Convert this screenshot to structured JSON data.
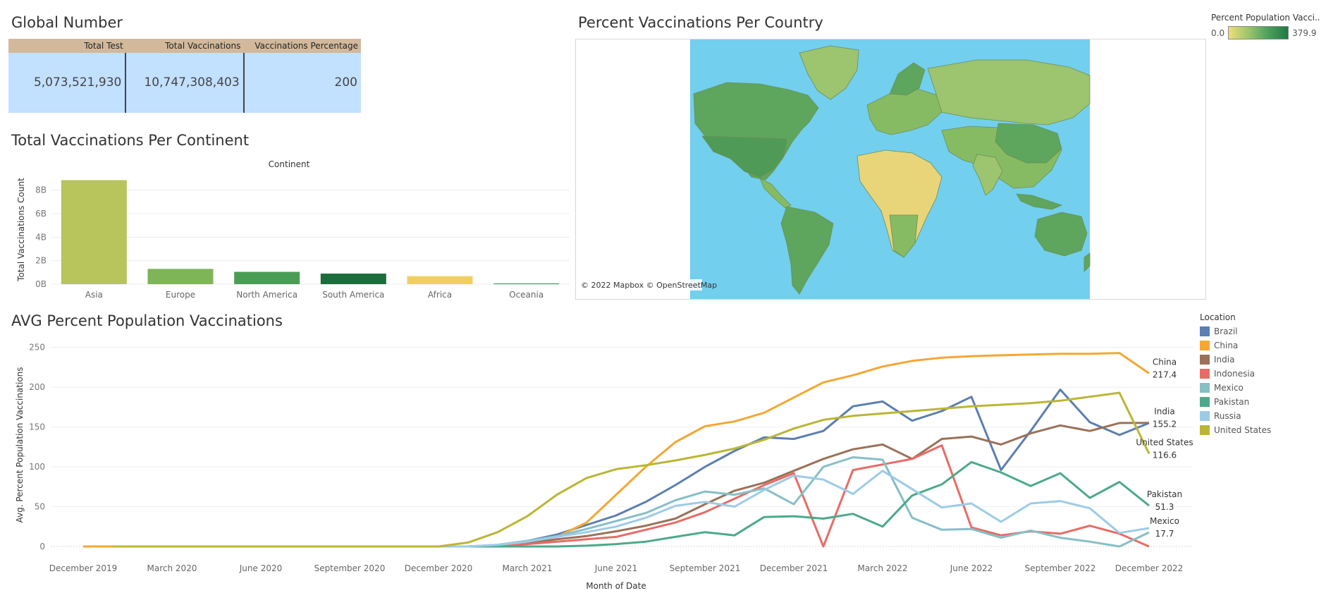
{
  "dashboard": {
    "global_title": "Global Number",
    "continent_title": "Total Vaccinations Per Continent",
    "map_title": "Percent Vaccinations Per Country",
    "line_title": "AVG Percent Population Vaccinations"
  },
  "table": {
    "headers": [
      "Total Test",
      "Total Vaccinations",
      "Vaccinations Percentage"
    ],
    "values": [
      "5,073,521,930",
      "10,747,308,403",
      "200"
    ]
  },
  "map": {
    "legend_title": "Percent Population Vacci..",
    "legend_min": "0.0",
    "legend_max": "379.9",
    "attribution": "© 2022 Mapbox © OpenStreetMap",
    "ocean_color": "#72cfee",
    "land_colors": [
      "#9dc46e",
      "#5ea55e",
      "#e8d57a",
      "#87bb63"
    ]
  },
  "legend": {
    "title": "Location",
    "items": [
      {
        "label": "Brazil",
        "color": "#5b7fb0"
      },
      {
        "label": "China",
        "color": "#f4a732"
      },
      {
        "label": "India",
        "color": "#9b7158"
      },
      {
        "label": "Indonesia",
        "color": "#e86b66"
      },
      {
        "label": "Mexico",
        "color": "#86bfc6"
      },
      {
        "label": "Pakistan",
        "color": "#4ca98a"
      },
      {
        "label": "Russia",
        "color": "#9dcbe6"
      },
      {
        "label": "United States",
        "color": "#bab634"
      }
    ]
  },
  "chart_data": [
    {
      "type": "bar",
      "title": "Total Vaccinations Per Continent",
      "header": "Continent",
      "xlabel": "",
      "ylabel": "Total Vaccinations Count",
      "categories": [
        "Asia",
        "Europe",
        "North America",
        "South America",
        "Africa",
        "Oceania"
      ],
      "values": [
        8.85,
        1.3,
        1.05,
        0.9,
        0.68,
        0.06
      ],
      "colors": [
        "#b8c45c",
        "#7db557",
        "#4a9d55",
        "#1b6e3b",
        "#f1cf63",
        "#2f8f4e"
      ],
      "yticks": [
        "0B",
        "2B",
        "4B",
        "6B",
        "8B"
      ],
      "ytick_values": [
        0,
        2,
        4,
        6,
        8
      ],
      "ylim": [
        0,
        9.3
      ],
      "grid": true
    },
    {
      "type": "line",
      "title": "AVG Percent Population Vaccinations",
      "xlabel": "Month of Date",
      "ylabel": "Avg. Percent Population Vaccinations",
      "x_range": [
        "2019-12",
        "2022-12"
      ],
      "ylim": [
        0,
        255
      ],
      "yticks": [
        0,
        50,
        100,
        150,
        200,
        250
      ],
      "xticks": [
        "December 2019",
        "March 2020",
        "June 2020",
        "September 2020",
        "December 2020",
        "March 2021",
        "June 2021",
        "September 2021",
        "December 2021",
        "March 2022",
        "June 2022",
        "September 2022",
        "December 2022"
      ],
      "grid": true,
      "series": [
        {
          "name": "Brazil",
          "points": [
            [
              "2020-01",
              0
            ],
            [
              "2021-01",
              0
            ],
            [
              "2021-02",
              2
            ],
            [
              "2021-03",
              7
            ],
            [
              "2021-04",
              15
            ],
            [
              "2021-05",
              27
            ],
            [
              "2021-06",
              39
            ],
            [
              "2021-07",
              56
            ],
            [
              "2021-08",
              77
            ],
            [
              "2021-09",
              100
            ],
            [
              "2021-10",
              120
            ],
            [
              "2021-11",
              137
            ],
            [
              "2021-12",
              135
            ],
            [
              "2022-01",
              145
            ],
            [
              "2022-02",
              176
            ],
            [
              "2022-03",
              182
            ],
            [
              "2022-04",
              158
            ],
            [
              "2022-05",
              170
            ],
            [
              "2022-06",
              188
            ],
            [
              "2022-07",
              96
            ],
            [
              "2022-08",
              145
            ],
            [
              "2022-09",
              197
            ],
            [
              "2022-10",
              156
            ],
            [
              "2022-11",
              140
            ],
            [
              "2022-12",
              155
            ]
          ]
        },
        {
          "name": "China",
          "points": [
            [
              "2019-12",
              0
            ],
            [
              "2020-01",
              0
            ],
            [
              "2021-01",
              0
            ],
            [
              "2021-02",
              0
            ],
            [
              "2021-03",
              4
            ],
            [
              "2021-04",
              12
            ],
            [
              "2021-05",
              30
            ],
            [
              "2021-06",
              65
            ],
            [
              "2021-07",
              100
            ],
            [
              "2021-08",
              131
            ],
            [
              "2021-09",
              151
            ],
            [
              "2021-10",
              157
            ],
            [
              "2021-11",
              168
            ],
            [
              "2021-12",
              187
            ],
            [
              "2022-01",
              206
            ],
            [
              "2022-02",
              215
            ],
            [
              "2022-03",
              226
            ],
            [
              "2022-04",
              233
            ],
            [
              "2022-05",
              237
            ],
            [
              "2022-06",
              239
            ],
            [
              "2022-07",
              240
            ],
            [
              "2022-08",
              241
            ],
            [
              "2022-09",
              242
            ],
            [
              "2022-10",
              242
            ],
            [
              "2022-11",
              243
            ],
            [
              "2022-12",
              217.4
            ]
          ]
        },
        {
          "name": "India",
          "points": [
            [
              "2020-01",
              0
            ],
            [
              "2021-01",
              0
            ],
            [
              "2021-02",
              1
            ],
            [
              "2021-03",
              4
            ],
            [
              "2021-04",
              9
            ],
            [
              "2021-05",
              13
            ],
            [
              "2021-06",
              19
            ],
            [
              "2021-07",
              26
            ],
            [
              "2021-08",
              35
            ],
            [
              "2021-09",
              53
            ],
            [
              "2021-10",
              70
            ],
            [
              "2021-11",
              80
            ],
            [
              "2021-12",
              95
            ],
            [
              "2022-01",
              110
            ],
            [
              "2022-02",
              122
            ],
            [
              "2022-03",
              128
            ],
            [
              "2022-04",
              110
            ],
            [
              "2022-05",
              135
            ],
            [
              "2022-06",
              138
            ],
            [
              "2022-07",
              128
            ],
            [
              "2022-08",
              142
            ],
            [
              "2022-09",
              152
            ],
            [
              "2022-10",
              145
            ],
            [
              "2022-11",
              155
            ],
            [
              "2022-12",
              155.2
            ]
          ]
        },
        {
          "name": "Indonesia",
          "points": [
            [
              "2020-01",
              0
            ],
            [
              "2021-01",
              0
            ],
            [
              "2021-02",
              1
            ],
            [
              "2021-03",
              3
            ],
            [
              "2021-04",
              6
            ],
            [
              "2021-05",
              9
            ],
            [
              "2021-06",
              12
            ],
            [
              "2021-07",
              21
            ],
            [
              "2021-08",
              30
            ],
            [
              "2021-09",
              43
            ],
            [
              "2021-10",
              60
            ],
            [
              "2021-11",
              77
            ],
            [
              "2021-12",
              92
            ],
            [
              "2022-01",
              0
            ],
            [
              "2022-02",
              96
            ],
            [
              "2022-03",
              103
            ],
            [
              "2022-04",
              110
            ],
            [
              "2022-05",
              127
            ],
            [
              "2022-06",
              24
            ],
            [
              "2022-07",
              14
            ],
            [
              "2022-08",
              19
            ],
            [
              "2022-09",
              16
            ],
            [
              "2022-10",
              26
            ],
            [
              "2022-11",
              16
            ],
            [
              "2022-12",
              0
            ]
          ]
        },
        {
          "name": "Mexico",
          "points": [
            [
              "2020-01",
              0
            ],
            [
              "2021-01",
              0
            ],
            [
              "2021-02",
              2
            ],
            [
              "2021-03",
              7
            ],
            [
              "2021-04",
              13
            ],
            [
              "2021-05",
              22
            ],
            [
              "2021-06",
              32
            ],
            [
              "2021-07",
              42
            ],
            [
              "2021-08",
              58
            ],
            [
              "2021-09",
              69
            ],
            [
              "2021-10",
              65
            ],
            [
              "2021-11",
              73
            ],
            [
              "2021-12",
              53
            ],
            [
              "2022-01",
              100
            ],
            [
              "2022-02",
              112
            ],
            [
              "2022-03",
              109
            ],
            [
              "2022-04",
              36
            ],
            [
              "2022-05",
              21
            ],
            [
              "2022-06",
              22
            ],
            [
              "2022-07",
              11
            ],
            [
              "2022-08",
              20
            ],
            [
              "2022-09",
              11
            ],
            [
              "2022-10",
              6
            ],
            [
              "2022-11",
              0
            ],
            [
              "2022-12",
              17.7
            ]
          ]
        },
        {
          "name": "Pakistan",
          "points": [
            [
              "2020-01",
              0
            ],
            [
              "2021-01",
              0
            ],
            [
              "2021-02",
              0
            ],
            [
              "2021-03",
              0
            ],
            [
              "2021-04",
              0
            ],
            [
              "2021-05",
              1
            ],
            [
              "2021-06",
              3
            ],
            [
              "2021-07",
              6
            ],
            [
              "2021-08",
              12
            ],
            [
              "2021-09",
              18
            ],
            [
              "2021-10",
              14
            ],
            [
              "2021-11",
              37
            ],
            [
              "2021-12",
              38
            ],
            [
              "2022-01",
              35
            ],
            [
              "2022-02",
              41
            ],
            [
              "2022-03",
              25
            ],
            [
              "2022-04",
              64
            ],
            [
              "2022-05",
              78
            ],
            [
              "2022-06",
              106
            ],
            [
              "2022-07",
              93
            ],
            [
              "2022-08",
              76
            ],
            [
              "2022-09",
              92
            ],
            [
              "2022-10",
              61
            ],
            [
              "2022-11",
              81
            ],
            [
              "2022-12",
              51.3
            ]
          ]
        },
        {
          "name": "Russia",
          "points": [
            [
              "2020-01",
              0
            ],
            [
              "2021-01",
              0
            ],
            [
              "2021-02",
              2
            ],
            [
              "2021-03",
              6
            ],
            [
              "2021-04",
              12
            ],
            [
              "2021-05",
              18
            ],
            [
              "2021-06",
              25
            ],
            [
              "2021-07",
              36
            ],
            [
              "2021-08",
              51
            ],
            [
              "2021-09",
              56
            ],
            [
              "2021-10",
              50
            ],
            [
              "2021-11",
              71
            ],
            [
              "2021-12",
              89
            ],
            [
              "2022-01",
              84
            ],
            [
              "2022-02",
              66
            ],
            [
              "2022-03",
              95
            ],
            [
              "2022-04",
              72
            ],
            [
              "2022-05",
              49
            ],
            [
              "2022-06",
              54
            ],
            [
              "2022-07",
              31
            ],
            [
              "2022-08",
              54
            ],
            [
              "2022-09",
              57
            ],
            [
              "2022-10",
              48
            ],
            [
              "2022-11",
              17
            ],
            [
              "2022-12",
              23
            ]
          ]
        },
        {
          "name": "United States",
          "points": [
            [
              "2020-01",
              0
            ],
            [
              "2020-12",
              0
            ],
            [
              "2021-01",
              5
            ],
            [
              "2021-02",
              18
            ],
            [
              "2021-03",
              38
            ],
            [
              "2021-04",
              65
            ],
            [
              "2021-05",
              86
            ],
            [
              "2021-06",
              97
            ],
            [
              "2021-07",
              102
            ],
            [
              "2021-08",
              108
            ],
            [
              "2021-09",
              115
            ],
            [
              "2021-10",
              123
            ],
            [
              "2021-11",
              134
            ],
            [
              "2021-12",
              148
            ],
            [
              "2022-01",
              159
            ],
            [
              "2022-02",
              164
            ],
            [
              "2022-03",
              167
            ],
            [
              "2022-04",
              170
            ],
            [
              "2022-05",
              173
            ],
            [
              "2022-06",
              176
            ],
            [
              "2022-07",
              178
            ],
            [
              "2022-08",
              180
            ],
            [
              "2022-09",
              183
            ],
            [
              "2022-10",
              188
            ],
            [
              "2022-11",
              193
            ],
            [
              "2022-12",
              116.6
            ]
          ]
        }
      ],
      "end_labels": [
        {
          "name": "China",
          "value": "217.4"
        },
        {
          "name": "India",
          "value": "155.2"
        },
        {
          "name": "United States",
          "value": "116.6"
        },
        {
          "name": "Pakistan",
          "value": "51.3"
        },
        {
          "name": "Mexico",
          "value": "17.7"
        }
      ]
    }
  ]
}
